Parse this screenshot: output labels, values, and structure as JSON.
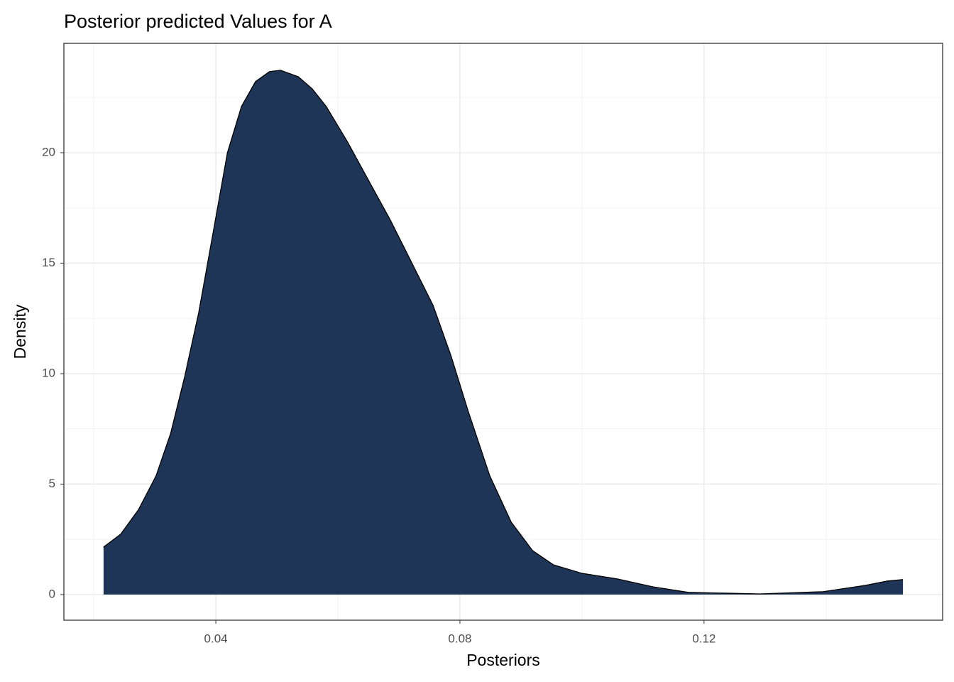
{
  "chart_data": {
    "type": "area",
    "title": "Posterior predicted Values for A",
    "xlabel": "Posteriors",
    "ylabel": "Density",
    "x": [
      0.0216,
      0.0244,
      0.0273,
      0.0302,
      0.0326,
      0.0349,
      0.0372,
      0.0395,
      0.0419,
      0.0442,
      0.0465,
      0.0488,
      0.0506,
      0.0535,
      0.0558,
      0.0581,
      0.0616,
      0.0651,
      0.0686,
      0.0721,
      0.0756,
      0.0785,
      0.0814,
      0.0849,
      0.0884,
      0.0919,
      0.0953,
      0.1,
      0.1058,
      0.1116,
      0.1174,
      0.1291,
      0.1395,
      0.1465,
      0.15,
      0.1526
    ],
    "values": [
      2.15,
      2.73,
      3.83,
      5.37,
      7.3,
      9.87,
      12.77,
      16.3,
      20.0,
      22.09,
      23.22,
      23.67,
      23.73,
      23.44,
      22.89,
      22.09,
      20.48,
      18.71,
      16.95,
      15.02,
      13.09,
      10.84,
      8.26,
      5.37,
      3.28,
      1.99,
      1.35,
      0.96,
      0.71,
      0.35,
      0.1,
      0.03,
      0.13,
      0.42,
      0.61,
      0.68
    ],
    "color": "#1f3557",
    "outline": "#000000",
    "xlim": [
      0.0151,
      0.1591
    ],
    "ylim": [
      -1.16,
      24.95
    ],
    "xticks": [
      0.04,
      0.08,
      0.12
    ],
    "yticks": [
      0,
      5,
      10,
      15,
      20
    ],
    "x_minor_ticks": [
      0.02,
      0.06,
      0.1,
      0.14
    ],
    "y_minor_ticks": [
      2.5,
      7.5,
      12.5,
      17.5,
      22.5
    ],
    "grid": true
  }
}
